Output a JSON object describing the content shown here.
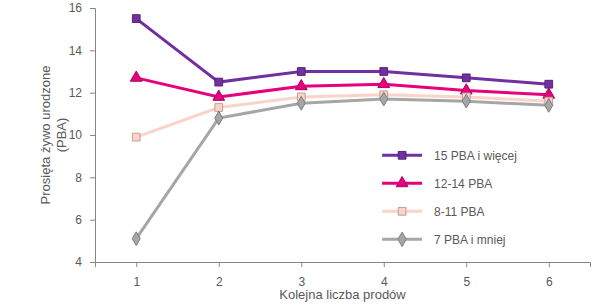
{
  "chart_data": {
    "type": "line",
    "x_label": "Kolejna liczba prodów",
    "y_label": "Prosięta żywo urodzone (PBA)",
    "categories": [
      "1",
      "2",
      "3",
      "4",
      "5",
      "6"
    ],
    "series": [
      {
        "name": "15 PBA i więcej",
        "color": "#7030a0",
        "marker": "square",
        "line_style": "solid",
        "values": [
          15.5,
          12.5,
          13.0,
          13.0,
          12.7,
          12.4
        ]
      },
      {
        "name": "12-14 PBA",
        "color": "#e6007e",
        "marker": "triangle",
        "line_style": "solid",
        "values": [
          12.7,
          11.8,
          12.3,
          12.4,
          12.1,
          11.9
        ]
      },
      {
        "name": "8-11 PBA",
        "color": "#fbd3c9",
        "marker": "square",
        "line_style": "solid",
        "values": [
          9.9,
          11.3,
          11.8,
          11.9,
          11.8,
          11.6
        ]
      },
      {
        "name": "7 PBA i mniej",
        "color": "#a6a6a6",
        "marker": "diamond",
        "line_style": "solid",
        "values": [
          5.1,
          10.8,
          11.5,
          11.7,
          11.6,
          11.4
        ]
      }
    ],
    "ylim": [
      4,
      16
    ],
    "yticks": [
      4,
      6,
      8,
      10,
      12,
      14,
      16
    ],
    "grid": false,
    "legend": "right"
  }
}
